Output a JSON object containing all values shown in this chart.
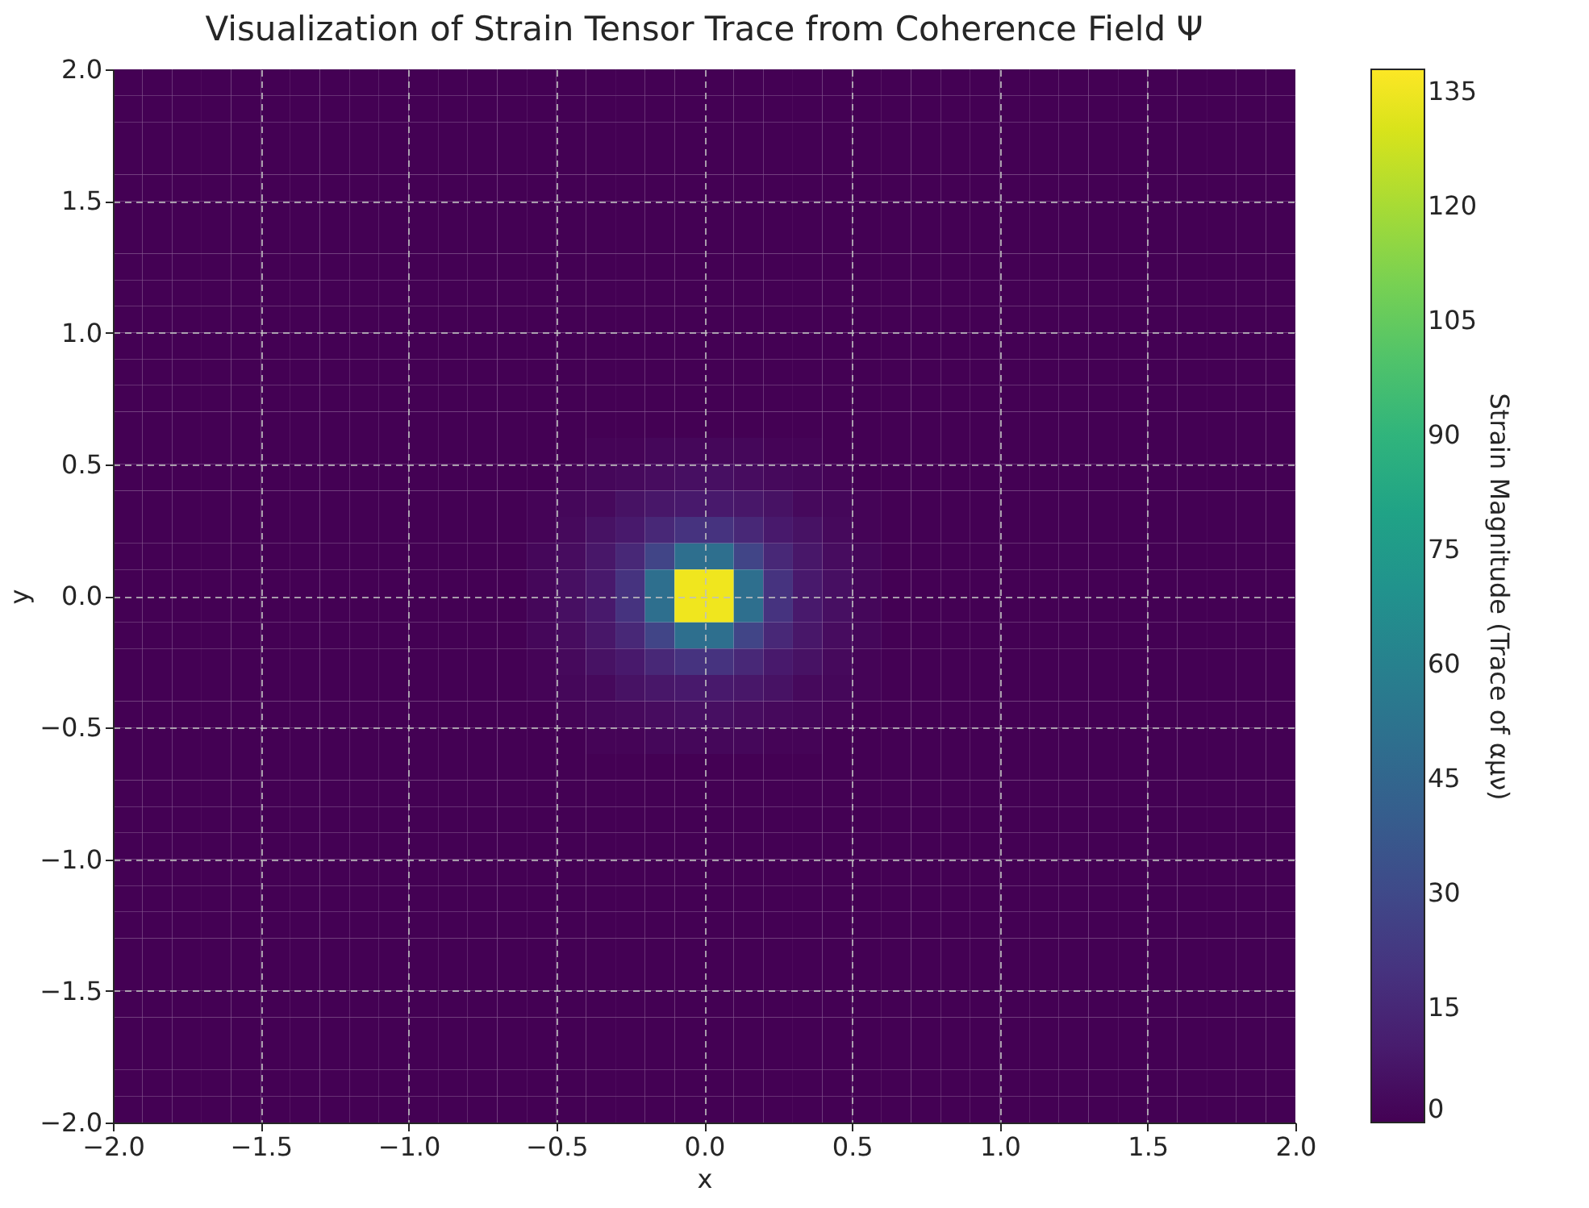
{
  "chart_data": {
    "type": "heatmap",
    "title": "Visualization of Strain Tensor Trace from Coherence Field Ψ",
    "xlabel": "x",
    "ylabel": "y",
    "clabel": "Strain Magnitude (Trace of αμν)",
    "x": [
      -1.95,
      -1.85,
      -1.75,
      -1.65,
      -1.55,
      -1.45,
      -1.35,
      -1.25,
      -1.15,
      -1.05,
      -0.95,
      -0.85,
      -0.75,
      -0.65,
      -0.55,
      -0.45,
      -0.35,
      -0.25,
      -0.15,
      -0.05,
      0.05,
      0.15,
      0.25,
      0.35,
      0.45,
      0.55,
      0.65,
      0.75,
      0.85,
      0.95,
      1.05,
      1.15,
      1.25,
      1.35,
      1.45,
      1.55,
      1.65,
      1.75,
      1.85,
      1.95
    ],
    "y": [
      1.95,
      1.85,
      1.75,
      1.65,
      1.55,
      1.45,
      1.35,
      1.25,
      1.15,
      1.05,
      0.95,
      0.85,
      0.75,
      0.65,
      0.55,
      0.45,
      0.35,
      0.25,
      0.15,
      0.05,
      -0.05,
      -0.15,
      -0.25,
      -0.35,
      -0.45,
      -0.55,
      -0.65,
      -0.75,
      -0.85,
      -0.95,
      -1.05,
      -1.15,
      -1.25,
      -1.35,
      -1.45,
      -1.55,
      -1.65,
      -1.75,
      -1.85,
      -1.95
    ],
    "cells": [
      [
        0,
        0,
        0,
        0,
        0,
        0,
        0,
        0,
        0,
        0,
        0,
        0,
        0,
        0,
        0,
        0,
        0,
        0,
        0,
        0,
        0,
        0,
        0,
        0,
        0,
        0,
        0,
        0,
        0,
        0,
        0,
        0,
        0,
        0,
        0,
        0,
        0,
        0,
        0,
        0
      ],
      [
        0,
        0,
        0,
        0,
        0,
        0,
        0,
        0,
        0,
        0,
        0,
        0,
        0,
        0,
        0,
        0,
        0,
        0,
        0,
        0,
        0,
        0,
        0,
        0,
        0,
        0,
        0,
        0,
        0,
        0,
        0,
        0,
        0,
        0,
        0,
        0,
        0,
        0,
        0,
        0
      ],
      [
        0,
        0,
        0,
        0,
        0,
        0,
        0,
        0,
        0,
        0,
        0,
        0,
        0,
        0,
        0,
        0,
        0,
        0,
        0,
        0,
        0,
        0,
        0,
        0,
        0,
        0,
        0,
        0,
        0,
        0,
        0,
        0,
        0,
        0,
        0,
        0,
        0,
        0,
        0,
        0
      ],
      [
        0,
        0,
        0,
        0,
        0,
        0,
        0,
        0,
        0,
        0,
        0,
        0,
        0,
        0,
        0,
        0,
        0,
        0,
        0,
        0,
        0,
        0,
        0,
        0,
        0,
        0,
        0,
        0,
        0,
        0,
        0,
        0,
        0,
        0,
        0,
        0,
        0,
        0,
        0,
        0
      ],
      [
        0,
        0,
        0,
        0,
        0,
        0,
        0,
        0,
        0,
        0,
        0,
        0,
        0,
        0,
        0,
        0,
        0,
        0,
        0,
        0,
        0,
        0,
        0,
        0,
        0,
        0,
        0,
        0,
        0,
        0,
        0,
        0,
        0,
        0,
        0,
        0,
        0,
        0,
        0,
        0
      ],
      [
        0,
        0,
        0,
        0,
        0,
        0,
        0,
        0,
        0,
        0,
        0,
        0,
        0,
        0,
        0,
        0,
        0,
        0,
        0,
        0,
        0,
        0,
        0,
        0,
        0,
        0,
        0,
        0,
        0,
        0,
        0,
        0,
        0,
        0,
        0,
        0,
        0,
        0,
        0,
        0
      ],
      [
        0,
        0,
        0,
        0,
        0,
        0,
        0,
        0,
        0,
        0,
        0,
        0,
        0,
        0,
        0,
        0,
        0,
        0,
        0,
        0,
        0,
        0,
        0,
        0,
        0,
        0,
        0,
        0,
        0,
        0,
        0,
        0,
        0,
        0,
        0,
        0,
        0,
        0,
        0,
        0
      ],
      [
        0,
        0,
        0,
        0,
        0,
        0,
        0,
        0,
        0,
        0,
        0,
        0,
        0,
        0,
        0,
        0,
        0,
        0,
        0,
        0,
        0,
        0,
        0,
        0,
        0,
        0,
        0,
        0,
        0,
        0,
        0,
        0,
        0,
        0,
        0,
        0,
        0,
        0,
        0,
        0
      ],
      [
        0,
        0,
        0,
        0,
        0,
        0,
        0,
        0,
        0,
        0,
        0,
        0,
        0,
        0,
        0,
        0,
        0,
        0,
        0,
        0,
        0,
        0,
        0,
        0,
        0,
        0,
        0,
        0,
        0,
        0,
        0,
        0,
        0,
        0,
        0,
        0,
        0,
        0,
        0,
        0
      ],
      [
        0,
        0,
        0,
        0,
        0,
        0,
        0,
        0,
        0,
        0,
        0,
        0,
        0,
        0,
        0,
        0,
        0,
        0,
        0,
        0,
        0,
        0,
        0,
        0,
        0,
        0,
        0,
        0,
        0,
        0,
        0,
        0,
        0,
        0,
        0,
        0,
        0,
        0,
        0,
        0
      ],
      [
        0,
        0,
        0,
        0,
        0,
        0,
        0,
        0,
        0,
        0,
        0,
        0,
        0,
        0,
        0,
        0,
        0,
        0,
        0,
        0,
        0,
        0,
        0,
        0,
        0,
        0,
        0,
        0,
        0,
        0,
        0,
        0,
        0,
        0,
        0,
        0,
        0,
        0,
        0,
        0
      ],
      [
        0,
        0,
        0,
        0,
        0,
        0,
        0,
        0,
        0,
        0,
        0,
        0,
        0,
        0,
        0,
        0,
        0,
        0,
        0,
        0,
        0,
        0,
        0,
        0,
        0,
        0,
        0,
        0,
        0,
        0,
        0,
        0,
        0,
        0,
        0,
        0,
        0,
        0,
        0,
        0
      ],
      [
        0,
        0,
        0,
        0,
        0,
        0,
        0,
        0,
        0,
        0,
        0,
        0,
        0,
        0,
        0,
        0,
        0,
        0,
        0,
        0,
        0,
        0,
        0,
        0,
        0,
        0,
        0,
        0,
        0,
        0,
        0,
        0,
        0,
        0,
        0,
        0,
        0,
        0,
        0,
        0
      ],
      [
        0,
        0,
        0,
        0,
        0,
        0,
        0,
        0,
        0,
        0,
        0,
        0,
        0,
        0,
        0,
        0,
        0,
        0,
        0,
        0,
        0,
        0,
        0,
        0,
        0,
        0,
        0,
        0,
        0,
        0,
        0,
        0,
        0,
        0,
        0,
        0,
        0,
        0,
        0,
        0
      ],
      [
        0,
        0,
        0,
        0,
        0,
        0,
        0,
        0,
        0,
        0,
        0,
        0,
        0,
        0,
        0,
        0,
        1,
        1,
        2,
        2,
        2,
        2,
        1,
        1,
        0,
        0,
        0,
        0,
        0,
        0,
        0,
        0,
        0,
        0,
        0,
        0,
        0,
        0,
        0,
        0
      ],
      [
        0,
        0,
        0,
        0,
        0,
        0,
        0,
        0,
        0,
        0,
        0,
        0,
        0,
        0,
        0,
        1,
        2,
        3,
        4,
        5,
        5,
        4,
        3,
        2,
        1,
        0,
        0,
        0,
        0,
        0,
        0,
        0,
        0,
        0,
        0,
        0,
        0,
        0,
        0,
        0
      ],
      [
        0,
        0,
        0,
        0,
        0,
        0,
        0,
        0,
        0,
        0,
        0,
        0,
        0,
        0,
        1,
        2,
        3,
        6,
        8,
        9,
        9,
        8,
        6,
        3,
        2,
        1,
        0,
        0,
        0,
        0,
        0,
        0,
        0,
        0,
        0,
        0,
        0,
        0,
        0,
        0
      ],
      [
        0,
        0,
        0,
        0,
        0,
        0,
        0,
        0,
        0,
        0,
        0,
        0,
        0,
        0,
        1,
        3,
        6,
        9,
        15,
        20,
        20,
        15,
        9,
        6,
        3,
        1,
        0,
        0,
        0,
        0,
        0,
        0,
        0,
        0,
        0,
        0,
        0,
        0,
        0,
        0
      ],
      [
        0,
        0,
        0,
        0,
        0,
        0,
        0,
        0,
        0,
        0,
        0,
        0,
        0,
        0,
        2,
        4,
        8,
        15,
        28,
        50,
        50,
        28,
        15,
        8,
        4,
        2,
        0,
        0,
        0,
        0,
        0,
        0,
        0,
        0,
        0,
        0,
        0,
        0,
        0,
        0
      ],
      [
        0,
        0,
        0,
        0,
        0,
        0,
        0,
        0,
        0,
        0,
        0,
        0,
        0,
        0,
        2,
        5,
        9,
        20,
        50,
        135,
        135,
        50,
        20,
        9,
        5,
        2,
        0,
        0,
        0,
        0,
        0,
        0,
        0,
        0,
        0,
        0,
        0,
        0,
        0,
        0
      ],
      [
        0,
        0,
        0,
        0,
        0,
        0,
        0,
        0,
        0,
        0,
        0,
        0,
        0,
        0,
        2,
        5,
        9,
        20,
        50,
        135,
        135,
        50,
        20,
        9,
        5,
        2,
        0,
        0,
        0,
        0,
        0,
        0,
        0,
        0,
        0,
        0,
        0,
        0,
        0,
        0
      ],
      [
        0,
        0,
        0,
        0,
        0,
        0,
        0,
        0,
        0,
        0,
        0,
        0,
        0,
        0,
        2,
        4,
        8,
        15,
        28,
        50,
        50,
        28,
        15,
        8,
        4,
        2,
        0,
        0,
        0,
        0,
        0,
        0,
        0,
        0,
        0,
        0,
        0,
        0,
        0,
        0
      ],
      [
        0,
        0,
        0,
        0,
        0,
        0,
        0,
        0,
        0,
        0,
        0,
        0,
        0,
        0,
        1,
        3,
        6,
        9,
        15,
        20,
        20,
        15,
        9,
        6,
        3,
        1,
        0,
        0,
        0,
        0,
        0,
        0,
        0,
        0,
        0,
        0,
        0,
        0,
        0,
        0
      ],
      [
        0,
        0,
        0,
        0,
        0,
        0,
        0,
        0,
        0,
        0,
        0,
        0,
        0,
        0,
        1,
        2,
        3,
        6,
        8,
        9,
        9,
        8,
        6,
        3,
        2,
        1,
        0,
        0,
        0,
        0,
        0,
        0,
        0,
        0,
        0,
        0,
        0,
        0,
        0,
        0
      ],
      [
        0,
        0,
        0,
        0,
        0,
        0,
        0,
        0,
        0,
        0,
        0,
        0,
        0,
        0,
        0,
        1,
        2,
        3,
        4,
        5,
        5,
        4,
        3,
        2,
        1,
        0,
        0,
        0,
        0,
        0,
        0,
        0,
        0,
        0,
        0,
        0,
        0,
        0,
        0,
        0
      ],
      [
        0,
        0,
        0,
        0,
        0,
        0,
        0,
        0,
        0,
        0,
        0,
        0,
        0,
        0,
        0,
        0,
        1,
        1,
        2,
        2,
        2,
        2,
        1,
        1,
        0,
        0,
        0,
        0,
        0,
        0,
        0,
        0,
        0,
        0,
        0,
        0,
        0,
        0,
        0,
        0
      ],
      [
        0,
        0,
        0,
        0,
        0,
        0,
        0,
        0,
        0,
        0,
        0,
        0,
        0,
        0,
        0,
        0,
        0,
        0,
        0,
        0,
        0,
        0,
        0,
        0,
        0,
        0,
        0,
        0,
        0,
        0,
        0,
        0,
        0,
        0,
        0,
        0,
        0,
        0,
        0,
        0
      ],
      [
        0,
        0,
        0,
        0,
        0,
        0,
        0,
        0,
        0,
        0,
        0,
        0,
        0,
        0,
        0,
        0,
        0,
        0,
        0,
        0,
        0,
        0,
        0,
        0,
        0,
        0,
        0,
        0,
        0,
        0,
        0,
        0,
        0,
        0,
        0,
        0,
        0,
        0,
        0,
        0
      ],
      [
        0,
        0,
        0,
        0,
        0,
        0,
        0,
        0,
        0,
        0,
        0,
        0,
        0,
        0,
        0,
        0,
        0,
        0,
        0,
        0,
        0,
        0,
        0,
        0,
        0,
        0,
        0,
        0,
        0,
        0,
        0,
        0,
        0,
        0,
        0,
        0,
        0,
        0,
        0,
        0
      ],
      [
        0,
        0,
        0,
        0,
        0,
        0,
        0,
        0,
        0,
        0,
        0,
        0,
        0,
        0,
        0,
        0,
        0,
        0,
        0,
        0,
        0,
        0,
        0,
        0,
        0,
        0,
        0,
        0,
        0,
        0,
        0,
        0,
        0,
        0,
        0,
        0,
        0,
        0,
        0,
        0
      ],
      [
        0,
        0,
        0,
        0,
        0,
        0,
        0,
        0,
        0,
        0,
        0,
        0,
        0,
        0,
        0,
        0,
        0,
        0,
        0,
        0,
        0,
        0,
        0,
        0,
        0,
        0,
        0,
        0,
        0,
        0,
        0,
        0,
        0,
        0,
        0,
        0,
        0,
        0,
        0,
        0
      ],
      [
        0,
        0,
        0,
        0,
        0,
        0,
        0,
        0,
        0,
        0,
        0,
        0,
        0,
        0,
        0,
        0,
        0,
        0,
        0,
        0,
        0,
        0,
        0,
        0,
        0,
        0,
        0,
        0,
        0,
        0,
        0,
        0,
        0,
        0,
        0,
        0,
        0,
        0,
        0,
        0
      ],
      [
        0,
        0,
        0,
        0,
        0,
        0,
        0,
        0,
        0,
        0,
        0,
        0,
        0,
        0,
        0,
        0,
        0,
        0,
        0,
        0,
        0,
        0,
        0,
        0,
        0,
        0,
        0,
        0,
        0,
        0,
        0,
        0,
        0,
        0,
        0,
        0,
        0,
        0,
        0,
        0
      ],
      [
        0,
        0,
        0,
        0,
        0,
        0,
        0,
        0,
        0,
        0,
        0,
        0,
        0,
        0,
        0,
        0,
        0,
        0,
        0,
        0,
        0,
        0,
        0,
        0,
        0,
        0,
        0,
        0,
        0,
        0,
        0,
        0,
        0,
        0,
        0,
        0,
        0,
        0,
        0,
        0
      ],
      [
        0,
        0,
        0,
        0,
        0,
        0,
        0,
        0,
        0,
        0,
        0,
        0,
        0,
        0,
        0,
        0,
        0,
        0,
        0,
        0,
        0,
        0,
        0,
        0,
        0,
        0,
        0,
        0,
        0,
        0,
        0,
        0,
        0,
        0,
        0,
        0,
        0,
        0,
        0,
        0
      ],
      [
        0,
        0,
        0,
        0,
        0,
        0,
        0,
        0,
        0,
        0,
        0,
        0,
        0,
        0,
        0,
        0,
        0,
        0,
        0,
        0,
        0,
        0,
        0,
        0,
        0,
        0,
        0,
        0,
        0,
        0,
        0,
        0,
        0,
        0,
        0,
        0,
        0,
        0,
        0,
        0
      ],
      [
        0,
        0,
        0,
        0,
        0,
        0,
        0,
        0,
        0,
        0,
        0,
        0,
        0,
        0,
        0,
        0,
        0,
        0,
        0,
        0,
        0,
        0,
        0,
        0,
        0,
        0,
        0,
        0,
        0,
        0,
        0,
        0,
        0,
        0,
        0,
        0,
        0,
        0,
        0,
        0
      ],
      [
        0,
        0,
        0,
        0,
        0,
        0,
        0,
        0,
        0,
        0,
        0,
        0,
        0,
        0,
        0,
        0,
        0,
        0,
        0,
        0,
        0,
        0,
        0,
        0,
        0,
        0,
        0,
        0,
        0,
        0,
        0,
        0,
        0,
        0,
        0,
        0,
        0,
        0,
        0,
        0
      ],
      [
        0,
        0,
        0,
        0,
        0,
        0,
        0,
        0,
        0,
        0,
        0,
        0,
        0,
        0,
        0,
        0,
        0,
        0,
        0,
        0,
        0,
        0,
        0,
        0,
        0,
        0,
        0,
        0,
        0,
        0,
        0,
        0,
        0,
        0,
        0,
        0,
        0,
        0,
        0,
        0
      ],
      [
        0,
        0,
        0,
        0,
        0,
        0,
        0,
        0,
        0,
        0,
        0,
        0,
        0,
        0,
        0,
        0,
        0,
        0,
        0,
        0,
        0,
        0,
        0,
        0,
        0,
        0,
        0,
        0,
        0,
        0,
        0,
        0,
        0,
        0,
        0,
        0,
        0,
        0,
        0,
        0
      ]
    ],
    "xlim": [
      -2.0,
      2.0
    ],
    "xticks": [
      {
        "value": -2,
        "label": "−2.0"
      },
      {
        "value": -1.5,
        "label": "−1.5"
      },
      {
        "value": -1,
        "label": "−1.0"
      },
      {
        "value": -0.5,
        "label": "−0.5"
      },
      {
        "value": 0,
        "label": "0.0"
      },
      {
        "value": 0.5,
        "label": "0.5"
      },
      {
        "value": 1,
        "label": "1.0"
      },
      {
        "value": 1.5,
        "label": "1.5"
      },
      {
        "value": 2,
        "label": "2.0"
      }
    ],
    "ylim": [
      -2.0,
      2.0
    ],
    "yticks": [
      {
        "value": -2,
        "label": "−2.0"
      },
      {
        "value": -1.5,
        "label": "−1.5"
      },
      {
        "value": -1,
        "label": "−1.0"
      },
      {
        "value": -0.5,
        "label": "−0.5"
      },
      {
        "value": 0,
        "label": "0.0"
      },
      {
        "value": 0.5,
        "label": "0.5"
      },
      {
        "value": 1,
        "label": "1.0"
      },
      {
        "value": 1.5,
        "label": "1.5"
      },
      {
        "value": 2,
        "label": "2.0"
      }
    ],
    "clim": [
      0,
      138
    ],
    "cticks": [
      0,
      15,
      30,
      45,
      60,
      75,
      90,
      105,
      120,
      135
    ],
    "grid": true
  }
}
